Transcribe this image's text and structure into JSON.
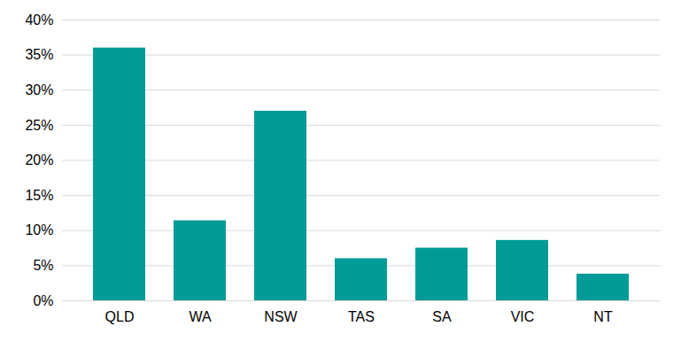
{
  "chart_data": {
    "type": "bar",
    "categories": [
      "QLD",
      "WA",
      "NSW",
      "TAS",
      "SA",
      "VIC",
      "NT"
    ],
    "values": [
      36,
      11.4,
      27,
      6,
      7.5,
      8.6,
      3.8
    ],
    "color": "#009b96",
    "ylim": [
      0,
      40
    ],
    "yticks": [
      {
        "value": 0,
        "label": "0%"
      },
      {
        "value": 5,
        "label": "5%"
      },
      {
        "value": 10,
        "label": "10%"
      },
      {
        "value": 15,
        "label": "15%"
      },
      {
        "value": 20,
        "label": "20%"
      },
      {
        "value": 25,
        "label": "25%"
      },
      {
        "value": 30,
        "label": "30%"
      },
      {
        "value": 35,
        "label": "35%"
      },
      {
        "value": 40,
        "label": "40%"
      }
    ],
    "grid": true
  }
}
